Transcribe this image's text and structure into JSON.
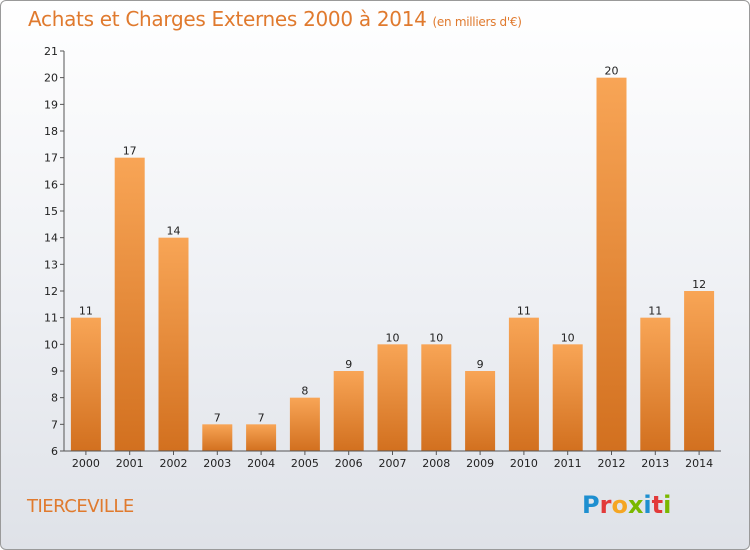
{
  "header": {
    "title": "Achats et Charges Externes 2000 à 2014",
    "subtitle": "(en milliers d'€)"
  },
  "footer": {
    "commune": "TIERCEVILLE",
    "logo": "Proxiti",
    "logo_letters": [
      "P",
      "r",
      "o",
      "x",
      "i",
      "t",
      "i"
    ],
    "logo_colors": [
      "#1e8fd0",
      "#e23a3a",
      "#f5a623",
      "#7ab800",
      "#1e8fd0",
      "#e23a3a",
      "#7ab800"
    ]
  },
  "colors": {
    "bar_top": "#f8a556",
    "bar_bottom": "#d2701f",
    "accent": "#e07a2e"
  },
  "chart_data": {
    "type": "bar",
    "title": "Achats et Charges Externes 2000 à 2014",
    "subtitle": "(en milliers d'€)",
    "categories": [
      "2000",
      "2001",
      "2002",
      "2003",
      "2004",
      "2005",
      "2006",
      "2007",
      "2008",
      "2009",
      "2010",
      "2011",
      "2012",
      "2013",
      "2014"
    ],
    "values": [
      11,
      17,
      14,
      7,
      7,
      8,
      9,
      10,
      10,
      9,
      11,
      10,
      20,
      11,
      12
    ],
    "xlabel": "",
    "ylabel": "",
    "ylim": [
      6,
      21
    ],
    "yticks": [
      6,
      7,
      8,
      9,
      10,
      11,
      12,
      13,
      14,
      15,
      16,
      17,
      18,
      19,
      20,
      21
    ],
    "grid": false,
    "legend": "none",
    "data_labels": true
  }
}
